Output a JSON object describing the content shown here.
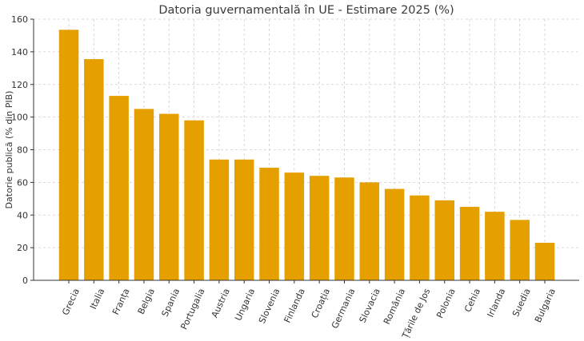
{
  "chart_data": {
    "type": "bar",
    "title": "Datoria guvernamentală în UE - Estimare 2025 (%)",
    "xlabel": "",
    "ylabel": "Datorie publică (% din PIB)",
    "categories": [
      "Grecia",
      "Italia",
      "Franța",
      "Belgia",
      "Spania",
      "Portugalia",
      "Austria",
      "Ungaria",
      "Slovenia",
      "Finlanda",
      "Croația",
      "Germania",
      "Slovacia",
      "România",
      "Țările de Jos",
      "Polonia",
      "Cehia",
      "Irlanda",
      "Suedia",
      "Bulgaria"
    ],
    "values": [
      153.5,
      135.5,
      113,
      105,
      102,
      98,
      74,
      74,
      69,
      66,
      64,
      63,
      60,
      56,
      52,
      49,
      45,
      42,
      37,
      23
    ],
    "ylim": [
      0,
      160
    ],
    "yticks": [
      0,
      20,
      40,
      60,
      80,
      100,
      120,
      140,
      160
    ],
    "grid": true,
    "bar_color": "#E5A000"
  }
}
